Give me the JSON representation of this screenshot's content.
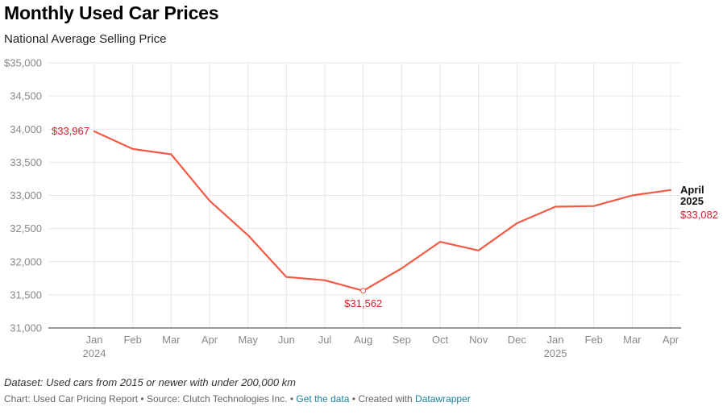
{
  "header": {
    "title": "Monthly Used Car Prices",
    "subtitle": "National Average Selling Price"
  },
  "footer": {
    "notes": "Dataset: Used cars from 2015 or newer with under 200,000 km",
    "chart_by": "Chart: Used Car Pricing Report",
    "source": "Source: Clutch Technologies Inc.",
    "separator": "•",
    "get_data": "Get the data",
    "created_with": "Created with",
    "tool": "Datawrapper"
  },
  "colors": {
    "line": "#f25a45",
    "label": "#d8202c",
    "grid": "#e6e6e6",
    "link": "#1d81a2"
  },
  "chart_data": {
    "type": "line",
    "title": "Monthly Used Car Prices",
    "subtitle": "National Average Selling Price",
    "x": [
      "Jan 2024",
      "Feb 2024",
      "Mar 2024",
      "Apr 2024",
      "May 2024",
      "Jun 2024",
      "Jul 2024",
      "Aug 2024",
      "Sep 2024",
      "Oct 2024",
      "Nov 2024",
      "Dec 2024",
      "Jan 2025",
      "Feb 2025",
      "Mar 2025",
      "Apr 2025"
    ],
    "x_tick_labels": [
      "Jan",
      "Feb",
      "Mar",
      "Apr",
      "May",
      "Jun",
      "Jul",
      "Aug",
      "Sep",
      "Oct",
      "Nov",
      "Dec",
      "Jan",
      "Feb",
      "Mar",
      "Apr"
    ],
    "x_year_labels": [
      {
        "index": 0,
        "label": "2024"
      },
      {
        "index": 12,
        "label": "2025"
      }
    ],
    "series": [
      {
        "values": [
          33967,
          33700,
          33620,
          32920,
          32400,
          31770,
          31720,
          31562,
          31900,
          32300,
          32170,
          32580,
          32830,
          32840,
          33000,
          33082
        ]
      }
    ],
    "ylim": [
      31000,
      35000
    ],
    "y_ticks": [
      31000,
      31500,
      32000,
      32500,
      33000,
      33500,
      34000,
      34500,
      35000
    ],
    "y_tick_labels": [
      "31,000",
      "31,500",
      "32,000",
      "32,500",
      "33,000",
      "33,500",
      "34,000",
      "34,500",
      "$35,000"
    ],
    "grid": true,
    "annotations": [
      {
        "index": 0,
        "text": "$33,967"
      },
      {
        "index": 7,
        "text": "$31,562"
      }
    ],
    "end_label": {
      "index": 15,
      "line1": "April",
      "line2": "2025",
      "value": "$33,082"
    }
  }
}
